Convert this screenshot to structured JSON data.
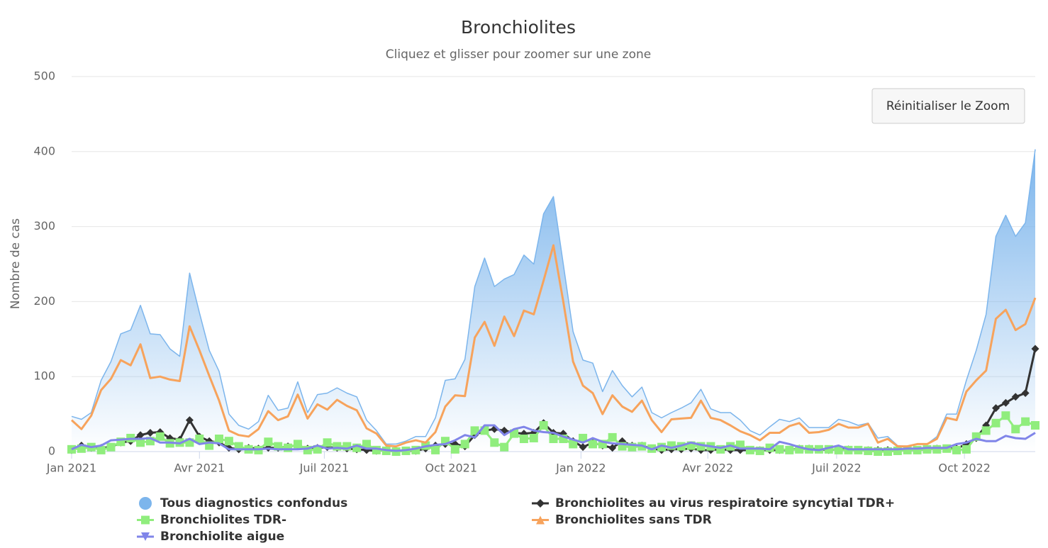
{
  "chart_data": {
    "type": "line",
    "title": "Bronchiolites",
    "subtitle": "Cliquez et glisser pour zoomer sur une zone",
    "button": "Réinitialiser le Zoom",
    "y_label": "Nombre de cas",
    "x": [
      0,
      1,
      2,
      3,
      4,
      5,
      6,
      7,
      8,
      9,
      10,
      11,
      12,
      13,
      14,
      15,
      16,
      17,
      18,
      19,
      20,
      21,
      22,
      23,
      24,
      25,
      26,
      27,
      28,
      29,
      30,
      31,
      32,
      33,
      34,
      35,
      36,
      37,
      38,
      39,
      40,
      41,
      42,
      43,
      44,
      45,
      46,
      47,
      48,
      49,
      50,
      51,
      52,
      53,
      54,
      55,
      56,
      57,
      58,
      59,
      60,
      61,
      62,
      63,
      64,
      65,
      66,
      67,
      68,
      69,
      70,
      71,
      72,
      73,
      74,
      75,
      76,
      77,
      78,
      79,
      80,
      81,
      82,
      83,
      84,
      85,
      86,
      87,
      88,
      89,
      90,
      91,
      92,
      93,
      94,
      95,
      96,
      97,
      98
    ],
    "xlim": [
      0,
      98
    ],
    "xticks": [
      {
        "value": 0,
        "label": "Jan 2021"
      },
      {
        "value": 13,
        "label": "Avr 2021"
      },
      {
        "value": 25.7,
        "label": "Juil 2021"
      },
      {
        "value": 38.6,
        "label": "Oct 2021"
      },
      {
        "value": 51.8,
        "label": "Jan 2022"
      },
      {
        "value": 64.7,
        "label": "Avr 2022"
      },
      {
        "value": 77.8,
        "label": "Juil 2022"
      },
      {
        "value": 90.8,
        "label": "Oct 2022"
      }
    ],
    "ylim": [
      0,
      500
    ],
    "yticks": [
      0,
      100,
      200,
      300,
      400,
      500
    ],
    "grid": true,
    "series": [
      {
        "name": "Tous diagnostics confondus",
        "color": "#7cb5ec",
        "marker": "circle",
        "area": true,
        "markers_on_chart": false,
        "values": [
          47,
          43,
          52,
          95,
          120,
          157,
          162,
          195,
          157,
          156,
          137,
          127,
          238,
          185,
          135,
          107,
          50,
          35,
          30,
          40,
          75,
          55,
          58,
          93,
          52,
          76,
          78,
          85,
          78,
          73,
          42,
          28,
          10,
          10,
          14,
          20,
          20,
          45,
          95,
          97,
          123,
          220,
          258,
          220,
          230,
          236,
          262,
          250,
          317,
          340,
          250,
          160,
          122,
          118,
          80,
          108,
          88,
          73,
          86,
          52,
          45,
          52,
          58,
          65,
          83,
          57,
          52,
          52,
          42,
          28,
          22,
          33,
          43,
          40,
          45,
          32,
          32,
          32,
          43,
          40,
          35,
          38,
          18,
          20,
          8,
          7,
          10,
          10,
          20,
          50,
          50,
          95,
          135,
          183,
          287,
          315,
          287,
          305,
          403
        ]
      },
      {
        "name": "Bronchiolites au virus respiratoire syncytial TDR+",
        "color": "#333333",
        "marker": "diamond",
        "area": false,
        "markers_on_chart": true,
        "values": [
          2,
          8,
          5,
          5,
          6,
          12,
          14,
          22,
          25,
          26,
          18,
          16,
          42,
          20,
          14,
          12,
          5,
          3,
          5,
          4,
          5,
          5,
          7,
          8,
          4,
          5,
          6,
          5,
          4,
          3,
          2,
          1,
          2,
          1,
          1,
          1,
          4,
          8,
          10,
          10,
          7,
          22,
          28,
          30,
          28,
          25,
          24,
          25,
          38,
          25,
          24,
          14,
          6,
          12,
          8,
          5,
          14,
          8,
          8,
          4,
          2,
          3,
          3,
          4,
          2,
          2,
          3,
          2,
          2,
          2,
          2,
          2,
          2,
          2,
          4,
          4,
          3,
          2,
          3,
          3,
          2,
          2,
          2,
          2,
          2,
          2,
          2,
          3,
          4,
          4,
          4,
          10,
          18,
          35,
          58,
          65,
          73,
          78,
          137
        ]
      },
      {
        "name": "Bronchiolites TDR-",
        "color": "#90ed7d",
        "marker": "square",
        "area": false,
        "markers_on_chart": true,
        "values": [
          3,
          4,
          6,
          2,
          6,
          13,
          18,
          12,
          14,
          20,
          11,
          12,
          12,
          17,
          8,
          17,
          14,
          7,
          3,
          2,
          13,
          7,
          5,
          10,
          2,
          3,
          12,
          7,
          7,
          5,
          10,
          2,
          1,
          0,
          1,
          2,
          8,
          2,
          14,
          3,
          10,
          28,
          28,
          12,
          6,
          24,
          17,
          18,
          35,
          17,
          17,
          10,
          18,
          10,
          10,
          19,
          7,
          6,
          7,
          4,
          6,
          8,
          7,
          8,
          7,
          7,
          3,
          7,
          9,
          2,
          1,
          5,
          3,
          2,
          3,
          3,
          3,
          3,
          2,
          2,
          2,
          1,
          0,
          0,
          1,
          2,
          2,
          3,
          3,
          4,
          2,
          3,
          20,
          28,
          38,
          48,
          30,
          40,
          35
        ]
      },
      {
        "name": "Bronchiolites sans TDR",
        "color": "#f7a35c",
        "marker": "triangle",
        "area": false,
        "markers_on_chart": false,
        "values": [
          42,
          30,
          48,
          82,
          97,
          122,
          115,
          143,
          98,
          100,
          96,
          94,
          167,
          135,
          101,
          68,
          28,
          22,
          20,
          30,
          54,
          42,
          47,
          76,
          44,
          63,
          56,
          69,
          61,
          55,
          31,
          24,
          8,
          7,
          12,
          15,
          12,
          26,
          60,
          75,
          74,
          152,
          173,
          141,
          180,
          154,
          188,
          183,
          228,
          275,
          200,
          120,
          88,
          78,
          50,
          75,
          60,
          53,
          68,
          42,
          26,
          43,
          44,
          45,
          68,
          45,
          42,
          35,
          27,
          22,
          15,
          25,
          25,
          34,
          38,
          25,
          26,
          29,
          37,
          32,
          32,
          37,
          12,
          17,
          7,
          7,
          10,
          10,
          17,
          45,
          42,
          80,
          95,
          108,
          177,
          189,
          162,
          170,
          205
        ]
      },
      {
        "name": "Bronchiolite aigue",
        "color": "#8085e9",
        "marker": "triangle-down",
        "area": false,
        "markers_on_chart": false,
        "values": [
          3,
          9,
          6,
          8,
          15,
          16,
          17,
          17,
          18,
          12,
          12,
          11,
          17,
          10,
          12,
          11,
          3,
          3,
          3,
          3,
          4,
          3,
          3,
          3,
          4,
          8,
          4,
          5,
          4,
          8,
          4,
          4,
          2,
          1,
          2,
          4,
          7,
          9,
          10,
          15,
          22,
          19,
          35,
          35,
          22,
          30,
          33,
          28,
          26,
          25,
          20,
          16,
          12,
          18,
          13,
          11,
          10,
          9,
          8,
          3,
          8,
          5,
          8,
          12,
          9,
          7,
          5,
          8,
          4,
          4,
          4,
          3,
          13,
          10,
          6,
          3,
          2,
          5,
          8,
          3,
          3,
          3,
          3,
          3,
          3,
          4,
          4,
          5,
          5,
          5,
          10,
          12,
          17,
          14,
          14,
          21,
          18,
          17,
          25
        ]
      }
    ]
  }
}
